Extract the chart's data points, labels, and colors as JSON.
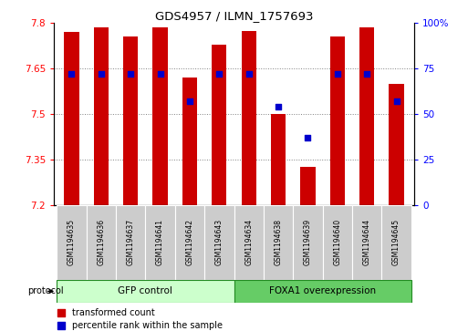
{
  "title": "GDS4957 / ILMN_1757693",
  "samples": [
    "GSM1194635",
    "GSM1194636",
    "GSM1194637",
    "GSM1194641",
    "GSM1194642",
    "GSM1194643",
    "GSM1194634",
    "GSM1194638",
    "GSM1194639",
    "GSM1194640",
    "GSM1194644",
    "GSM1194645"
  ],
  "transformed_count": [
    7.77,
    7.785,
    7.755,
    7.785,
    7.62,
    7.73,
    7.775,
    7.5,
    7.325,
    7.755,
    7.785,
    7.6
  ],
  "percentile_rank": [
    72,
    72,
    72,
    72,
    57,
    72,
    72,
    54,
    37,
    72,
    72,
    57
  ],
  "y_min": 7.2,
  "y_max": 7.8,
  "y_ticks": [
    7.2,
    7.35,
    7.5,
    7.65,
    7.8
  ],
  "right_y_ticks": [
    0,
    25,
    50,
    75,
    100
  ],
  "right_y_labels": [
    "0",
    "25",
    "50",
    "75",
    "100%"
  ],
  "group1_label": "GFP control",
  "group2_label": "FOXA1 overexpression",
  "group1_count": 6,
  "group2_count": 6,
  "protocol_label": "protocol",
  "bar_color": "#CC0000",
  "dot_color": "#0000CC",
  "group1_bg": "#CCFFCC",
  "group2_bg": "#66CC66",
  "xlabel_bg": "#CCCCCC",
  "bar_width": 0.5,
  "legend_tc": "transformed count",
  "legend_pr": "percentile rank within the sample"
}
